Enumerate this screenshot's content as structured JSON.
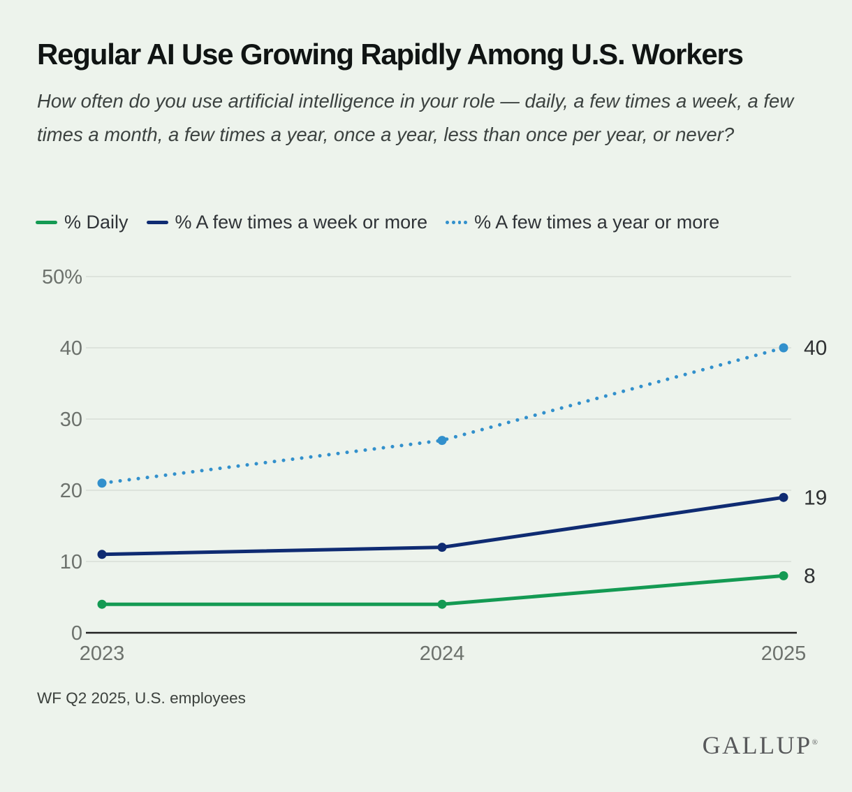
{
  "page": {
    "title": "Regular AI Use Growing Rapidly Among U.S. Workers",
    "subtitle": "How often do you use artificial intelligence in your role — daily, a few times a week, a few times a month, a few times a year, once a year, less than once per year, or never?",
    "footnote": "WF Q2 2025, U.S. employees",
    "logo_text": "GALLUP",
    "logo_mark": "®"
  },
  "colors": {
    "background": "#edf3ec",
    "grid_line": "#d8ded7",
    "axis_line": "#222222",
    "axis_text": "#6c716c",
    "end_label_text": "#2e3032",
    "green": "#149a53",
    "navy": "#0f2b72",
    "light_blue": "#3290cc"
  },
  "chart_data": {
    "type": "line",
    "x": [
      "2023",
      "2024",
      "2025"
    ],
    "ylim": [
      0,
      50
    ],
    "grid": "horizontal",
    "legend_position": "top",
    "y_ticks": [
      {
        "value": 0,
        "label": "0"
      },
      {
        "value": 10,
        "label": "10"
      },
      {
        "value": 20,
        "label": "20"
      },
      {
        "value": 30,
        "label": "30"
      },
      {
        "value": 40,
        "label": "40"
      },
      {
        "value": 50,
        "label": "50%"
      }
    ],
    "series": [
      {
        "name": "% Daily",
        "color": "#149a53",
        "line_style": "solid",
        "values": [
          4,
          4,
          8
        ],
        "end_label": "8"
      },
      {
        "name": "% A few times a week or more",
        "color": "#0f2b72",
        "line_style": "solid",
        "values": [
          11,
          12,
          19
        ],
        "end_label": "19"
      },
      {
        "name": "% A few times a year or more",
        "color": "#3290cc",
        "line_style": "dotted",
        "values": [
          21,
          27,
          40
        ],
        "end_label": "40"
      }
    ]
  }
}
